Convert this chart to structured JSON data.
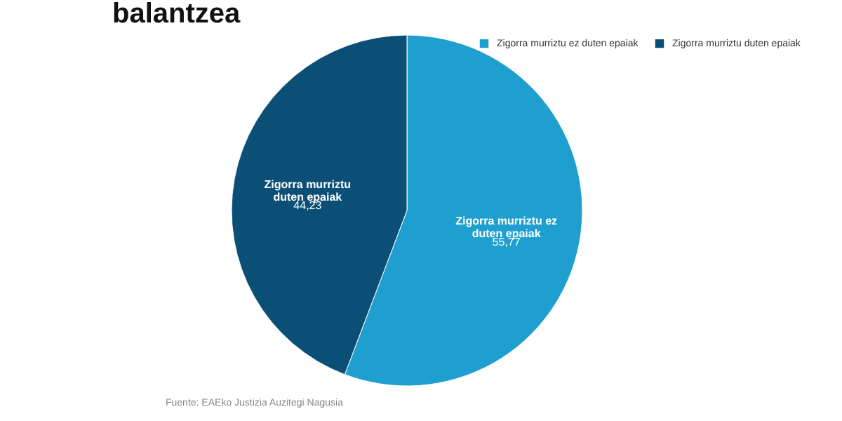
{
  "chart_data": {
    "type": "pie",
    "title": "balantzea",
    "categories": [
      "Zigorra murriztu ez duten epaiak",
      "Zigorra murriztu duten epaiak"
    ],
    "values": [
      55.77,
      44.23
    ],
    "value_labels": [
      "55,77",
      "44,23"
    ],
    "colors": [
      "#1f9fd0",
      "#0b4f76"
    ],
    "legend": "top right",
    "annotations": [
      "Fuente: EAEko Justizia Auzitegi Nagusia"
    ]
  }
}
